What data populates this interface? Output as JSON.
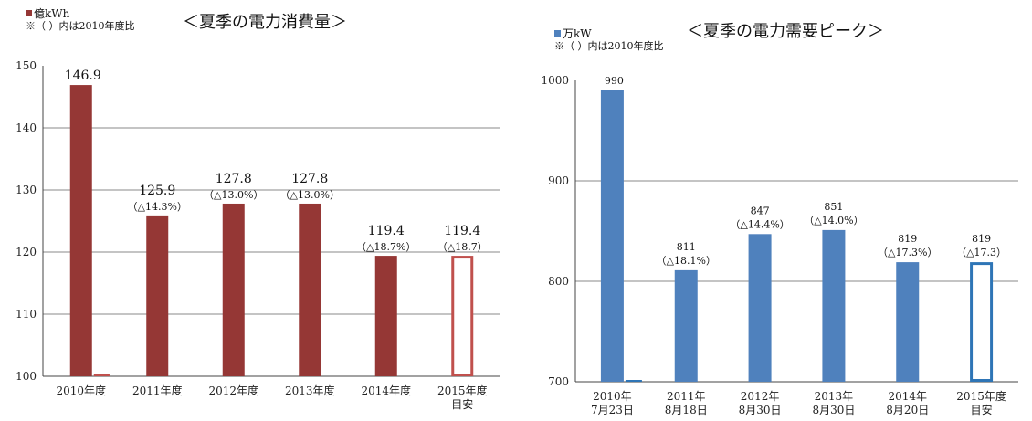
{
  "chart_data": [
    {
      "type": "bar",
      "title": "＜夏季の電力消費量＞",
      "legend": {
        "label": "億kWh",
        "note": "※（ ）内は2010年度比",
        "color": "#953735"
      },
      "ylim": [
        100,
        150
      ],
      "yticks": [
        100,
        110,
        120,
        130,
        140,
        150
      ],
      "gridlines": [
        110,
        120,
        130,
        140
      ],
      "categories": [
        [
          "2010年度"
        ],
        [
          "2011年度"
        ],
        [
          "2012年度"
        ],
        [
          "2013年度"
        ],
        [
          "2014年度"
        ],
        [
          "2015年度",
          "目安"
        ]
      ],
      "values": [
        146.9,
        125.9,
        127.8,
        127.8,
        119.4,
        119.4
      ],
      "value_labels": [
        "146.9",
        "125.9",
        "127.8",
        "127.8",
        "119.4",
        "119.4"
      ],
      "pct_labels": [
        "",
        "（△14.3%）",
        "（△13.0%）",
        "（△13.0%）",
        "（△18.7%）",
        "（△18.7）"
      ],
      "styles": [
        "solid",
        "solid",
        "solid",
        "solid",
        "solid",
        "outline"
      ],
      "colors": {
        "bar": "#953735",
        "outline": "#c0504d"
      }
    },
    {
      "type": "bar",
      "title": "＜夏季の電力需要ピーク＞",
      "legend": {
        "label": "万kW",
        "note": "※（ ）内は2010年度比",
        "color": "#4f81bd"
      },
      "ylim": [
        700,
        1000
      ],
      "yticks": [
        700,
        800,
        900,
        1000
      ],
      "gridlines": [
        800,
        900
      ],
      "categories": [
        [
          "2010年",
          "7月23日"
        ],
        [
          "2011年",
          "8月18日"
        ],
        [
          "2012年",
          "8月30日"
        ],
        [
          "2013年",
          "8月30日"
        ],
        [
          "2014年",
          "8月20日"
        ],
        [
          "2015年度",
          "目安"
        ]
      ],
      "values": [
        990,
        811,
        847,
        851,
        819,
        819
      ],
      "value_labels": [
        "990",
        "811",
        "847",
        "851",
        "819",
        "819"
      ],
      "pct_labels": [
        "",
        "（△18.1%）",
        "（△14.4%）",
        "（△14.0%）",
        "（△17.3%）",
        "（△17.3）"
      ],
      "styles": [
        "solid",
        "solid",
        "solid",
        "solid",
        "solid",
        "outline"
      ],
      "colors": {
        "bar": "#4f81bd",
        "outline": "#2e75b6"
      }
    }
  ]
}
